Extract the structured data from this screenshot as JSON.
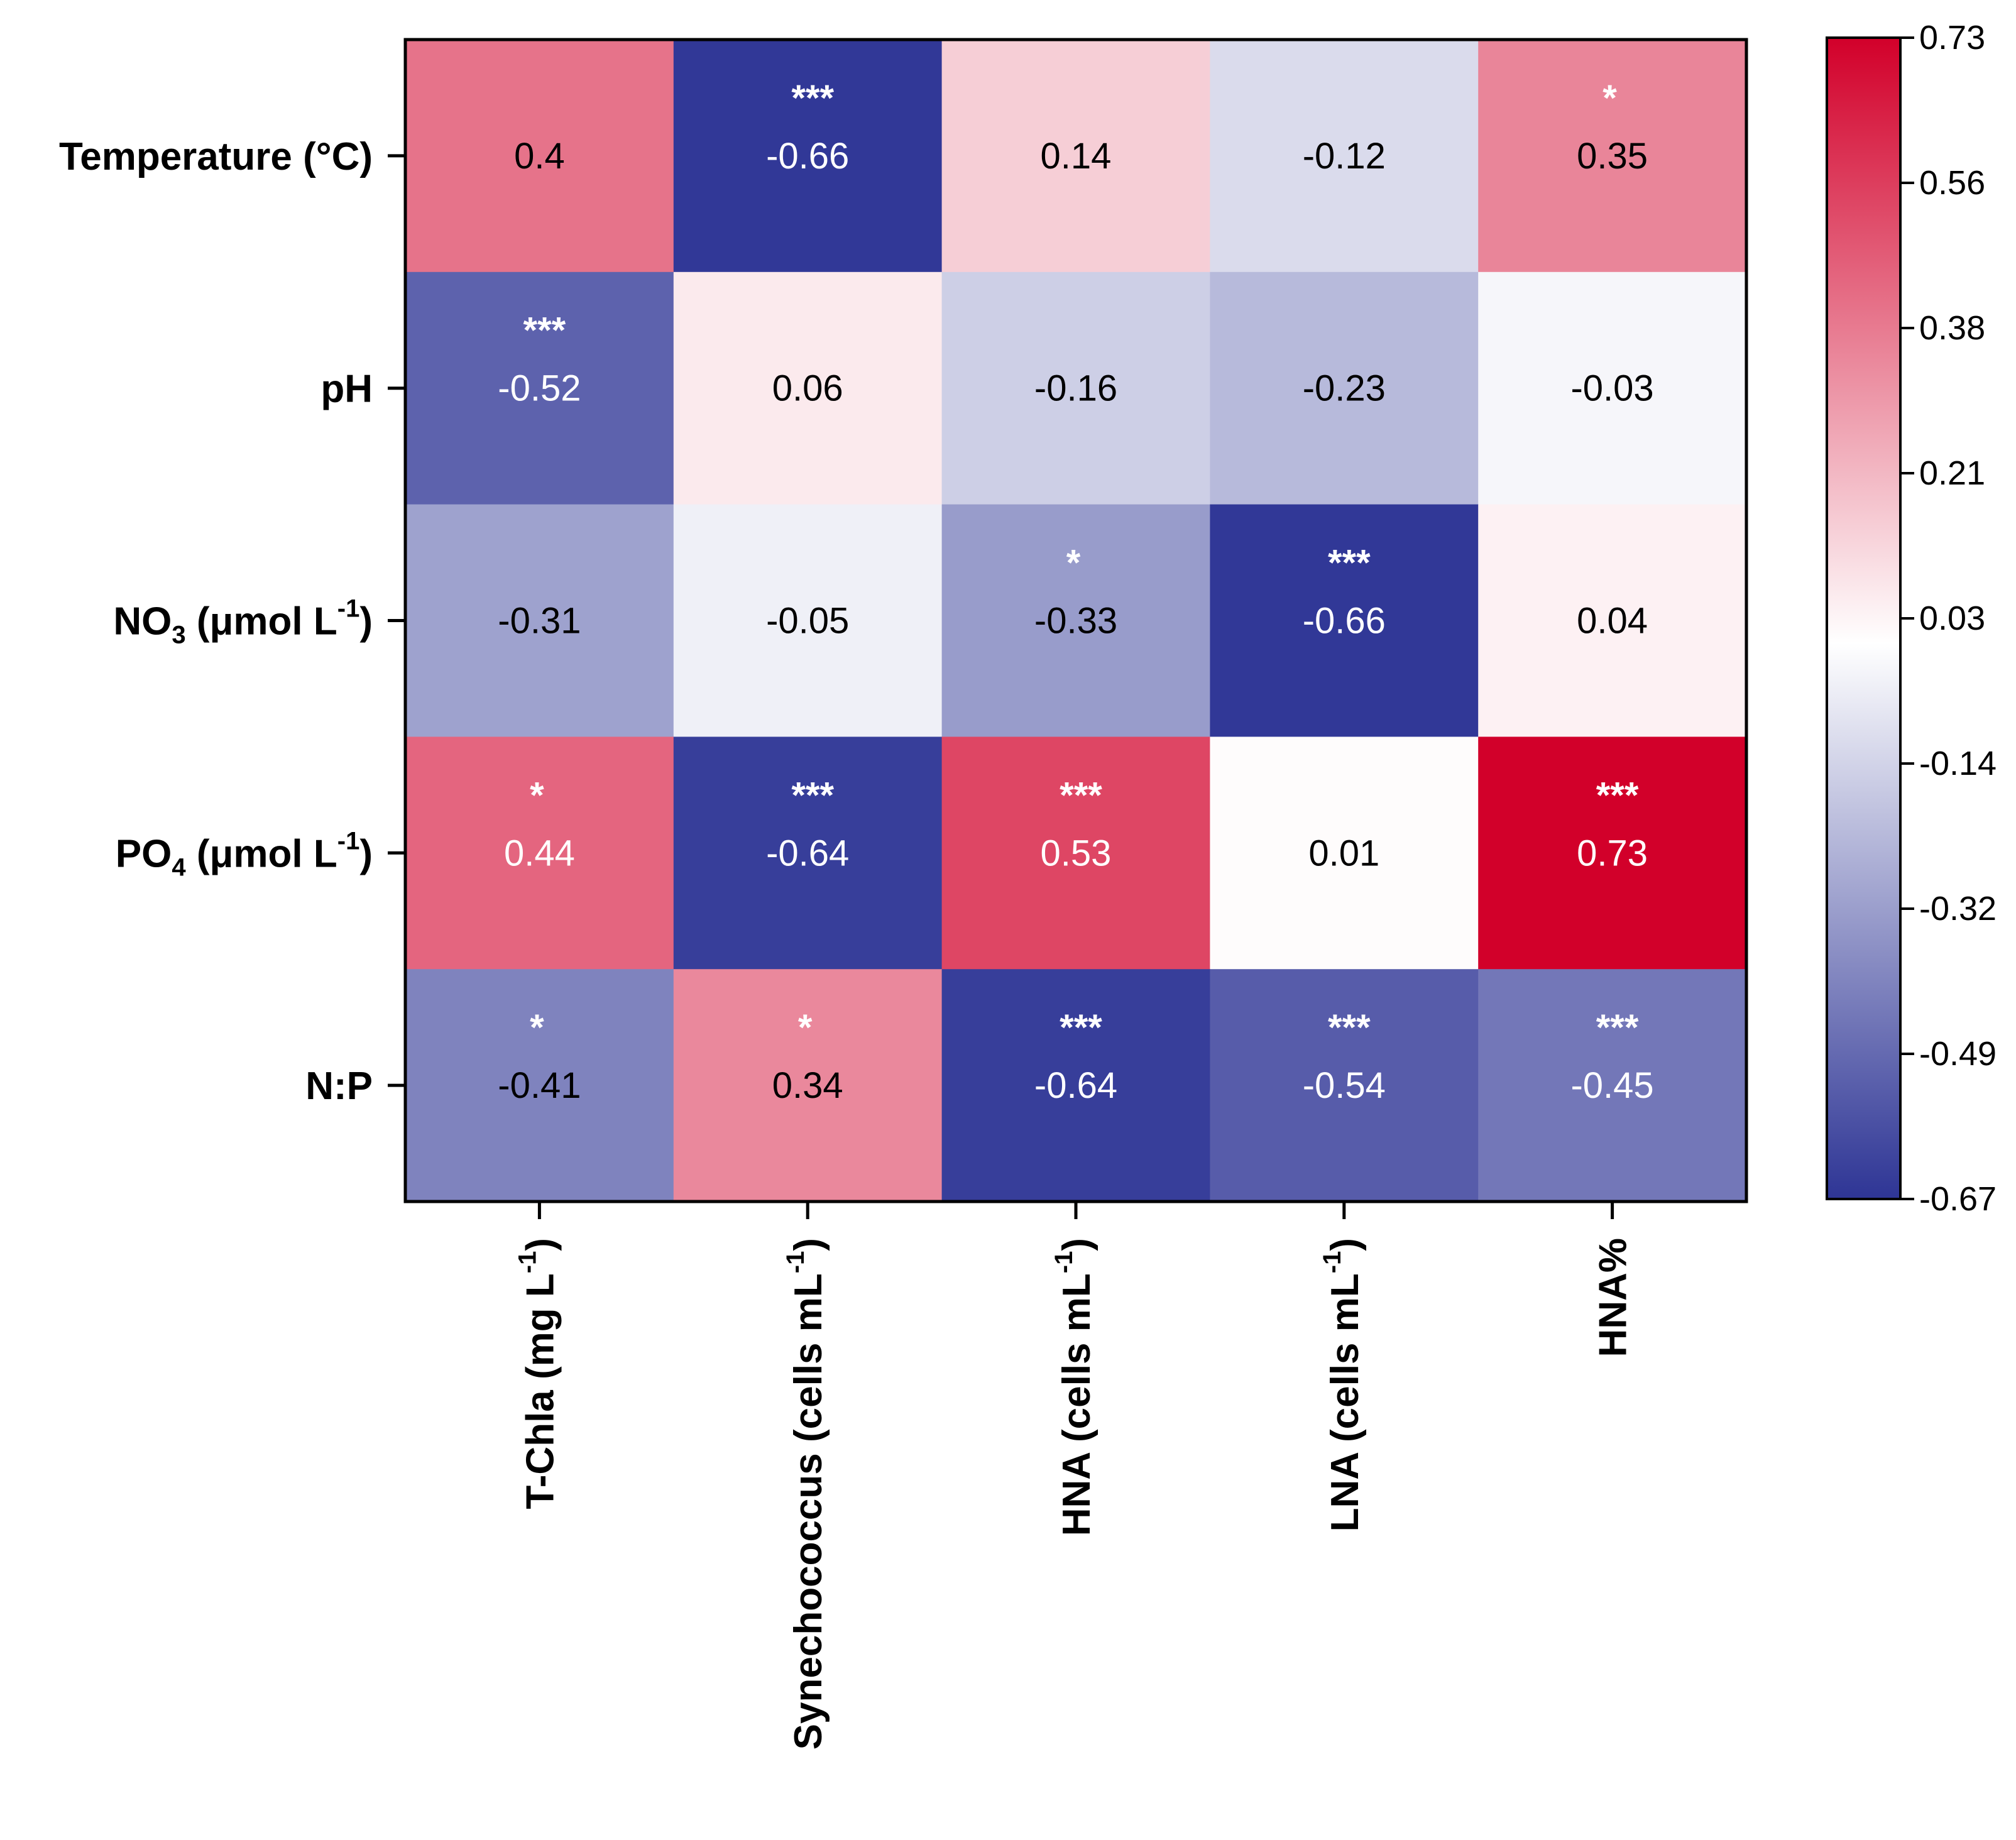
{
  "chart_data": {
    "type": "heatmap",
    "title": "",
    "rows": [
      {
        "label": "Temperature (°C)"
      },
      {
        "label": "pH"
      },
      {
        "label": "NO",
        "sub": "3",
        "tail": " (μmol L",
        "sup": "-1",
        "end": ")"
      },
      {
        "label": "PO",
        "sub": "4",
        "tail": " (μmol L",
        "sup": "-1",
        "end": ")"
      },
      {
        "label": "N:P"
      }
    ],
    "columns": [
      {
        "label": "T-Chla (mg L",
        "sup": "-1",
        "end": ")"
      },
      {
        "label": "Synechococcus (cells mL",
        "sup": "-1",
        "end": ")"
      },
      {
        "label": "HNA (cells mL",
        "sup": "-1",
        "end": ")"
      },
      {
        "label": "LNA  (cells mL",
        "sup": "-1",
        "end": ")"
      },
      {
        "label": "HNA%"
      }
    ],
    "values": [
      [
        0.4,
        -0.66,
        0.14,
        -0.12,
        0.35
      ],
      [
        -0.52,
        0.06,
        -0.16,
        -0.23,
        -0.03
      ],
      [
        -0.31,
        -0.05,
        -0.33,
        -0.66,
        0.04
      ],
      [
        0.44,
        -0.64,
        0.53,
        0.01,
        0.73
      ],
      [
        -0.41,
        0.34,
        -0.64,
        -0.54,
        -0.45
      ]
    ],
    "value_labels": [
      [
        "0.4",
        "-0.66",
        "0.14",
        "-0.12",
        "0.35"
      ],
      [
        "-0.52",
        "0.06",
        "-0.16",
        "-0.23",
        "-0.03"
      ],
      [
        "-0.31",
        "-0.05",
        "-0.33",
        "-0.66",
        "0.04"
      ],
      [
        "0.44",
        "-0.64",
        "0.53",
        "0.01",
        "0.73"
      ],
      [
        "-0.41",
        "0.34",
        "-0.64",
        "-0.54",
        "-0.45"
      ]
    ],
    "significance": [
      [
        "",
        "***",
        "",
        "",
        "*"
      ],
      [
        "***",
        "",
        "",
        "",
        ""
      ],
      [
        "",
        "",
        "*",
        "***",
        ""
      ],
      [
        "*",
        "***",
        "***",
        "",
        "***"
      ],
      [
        "*",
        "*",
        "***",
        "***",
        "***"
      ]
    ],
    "colorbar": {
      "min": -0.67,
      "max": 0.73,
      "ticks": [
        "0.73",
        "0.56",
        "0.38",
        "0.21",
        "0.03",
        "-0.14",
        "-0.32",
        "-0.49",
        "-0.67"
      ],
      "colors": {
        "low": "#2e3595",
        "mid": "#ffffff",
        "high": "#d2002a"
      }
    },
    "grid": false,
    "legend": "right"
  }
}
